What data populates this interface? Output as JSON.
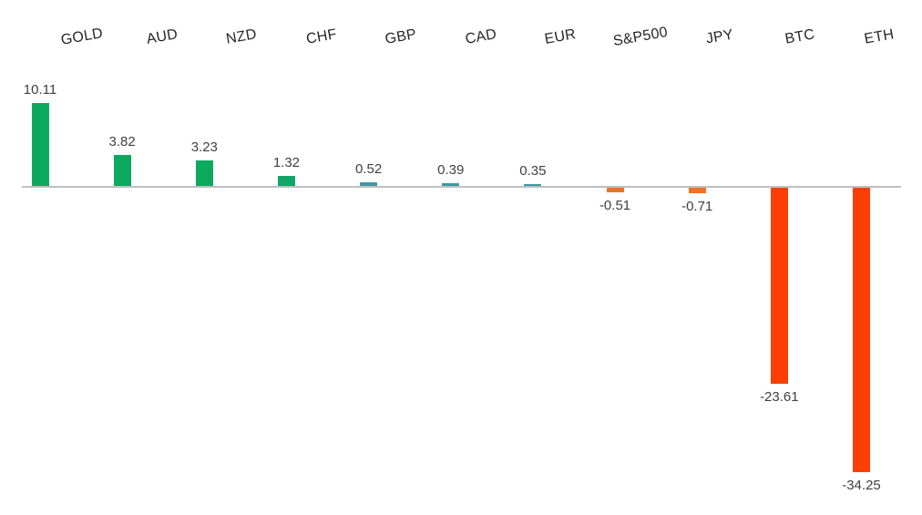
{
  "chart_data": {
    "type": "bar",
    "title": "",
    "xlabel": "",
    "ylabel": "",
    "categories": [
      "GOLD",
      "AUD",
      "NZD",
      "CHF",
      "GBP",
      "CAD",
      "EUR",
      "S&P500",
      "JPY",
      "BTC",
      "ETH"
    ],
    "values": [
      10.11,
      3.82,
      3.23,
      1.32,
      0.52,
      0.39,
      0.35,
      -0.51,
      -0.71,
      -23.61,
      -34.25
    ],
    "value_labels": [
      "10.11",
      "3.82",
      "3.23",
      "1.32",
      "0.52",
      "0.39",
      "0.35",
      "-0.51",
      "-0.71",
      "-23.61",
      "-34.25"
    ],
    "bar_colors": [
      "#0da95e",
      "#0da95e",
      "#0da95e",
      "#12a567",
      "#3f98a5",
      "#3f98a5",
      "#3f98a5",
      "#ed7226",
      "#ed7226",
      "#fa3e04",
      "#fa3e04"
    ],
    "colors": {
      "positive_large": "#0da95e",
      "positive_small": "#3f98a5",
      "negative_small": "#ed7226",
      "negative_large": "#fa3e04",
      "axis_line": "#bfbfbf",
      "category_text": "#262626",
      "value_text": "#404040"
    },
    "layout_hints": {
      "category_labels_position": "top",
      "category_labels_rotation_deg": -10,
      "data_labels": "outside-end",
      "gridlines": false,
      "y_axis_visible": false,
      "zero_line": true,
      "ylim": [
        -40,
        12
      ]
    }
  }
}
